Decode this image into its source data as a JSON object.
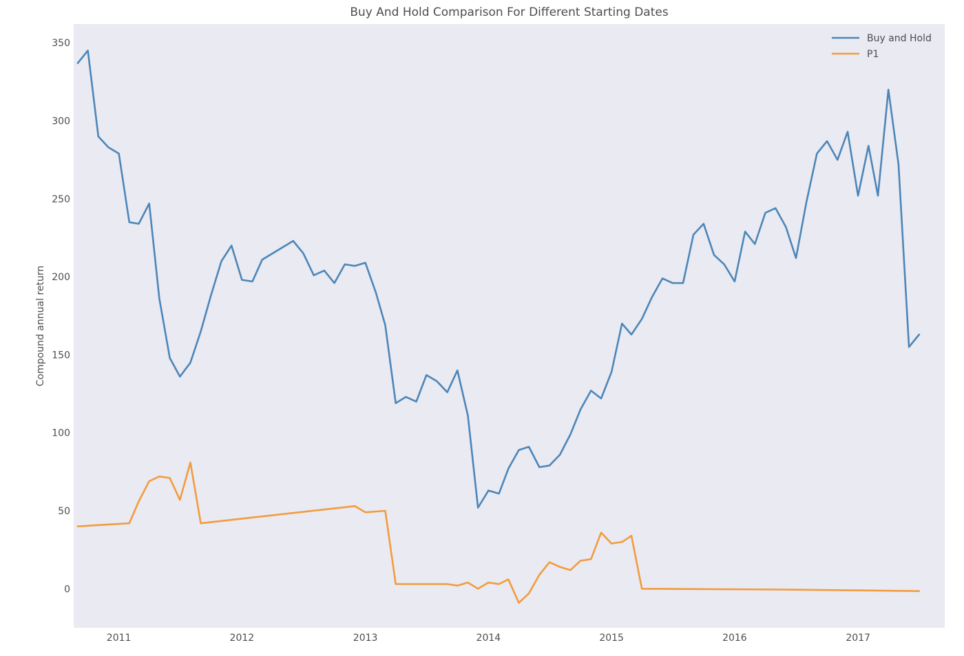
{
  "chart_data": {
    "type": "line",
    "title": "Buy And Hold Comparison For Different Starting Dates",
    "xlabel": "",
    "ylabel": "Compound annual return",
    "x_ticks": [
      "2011",
      "2012",
      "2013",
      "2014",
      "2015",
      "2016",
      "2017"
    ],
    "y_ticks": [
      0,
      50,
      100,
      150,
      200,
      250,
      300,
      350
    ],
    "xlim": [
      "2010-08-20",
      "2017-09-15"
    ],
    "ylim": [
      -25,
      362
    ],
    "grid": false,
    "legend_position": "top-right",
    "series": [
      {
        "name": "Buy and Hold",
        "color": "#4c86b8",
        "points": [
          [
            "2010-09-01",
            337
          ],
          [
            "2010-10-01",
            345
          ],
          [
            "2010-11-01",
            290
          ],
          [
            "2010-12-01",
            283
          ],
          [
            "2011-01-01",
            279
          ],
          [
            "2011-02-01",
            235
          ],
          [
            "2011-03-01",
            234
          ],
          [
            "2011-04-01",
            247
          ],
          [
            "2011-05-01",
            186
          ],
          [
            "2011-06-01",
            148
          ],
          [
            "2011-07-01",
            136
          ],
          [
            "2011-08-01",
            145
          ],
          [
            "2011-09-01",
            165
          ],
          [
            "2011-10-01",
            188
          ],
          [
            "2011-11-01",
            210
          ],
          [
            "2011-12-01",
            220
          ],
          [
            "2012-01-01",
            198
          ],
          [
            "2012-02-01",
            197
          ],
          [
            "2012-03-01",
            211
          ],
          [
            "2012-06-01",
            223
          ],
          [
            "2012-07-01",
            215
          ],
          [
            "2012-08-01",
            201
          ],
          [
            "2012-09-01",
            204
          ],
          [
            "2012-10-01",
            196
          ],
          [
            "2012-11-01",
            208
          ],
          [
            "2012-12-01",
            207
          ],
          [
            "2013-01-01",
            209
          ],
          [
            "2013-02-01",
            190
          ],
          [
            "2013-03-01",
            169
          ],
          [
            "2013-04-01",
            119
          ],
          [
            "2013-05-01",
            123
          ],
          [
            "2013-06-01",
            120
          ],
          [
            "2013-07-01",
            137
          ],
          [
            "2013-08-01",
            133
          ],
          [
            "2013-09-01",
            126
          ],
          [
            "2013-10-01",
            140
          ],
          [
            "2013-11-01",
            111
          ],
          [
            "2013-12-01",
            52
          ],
          [
            "2014-01-01",
            63
          ],
          [
            "2014-02-01",
            61
          ],
          [
            "2014-03-01",
            77
          ],
          [
            "2014-04-01",
            89
          ],
          [
            "2014-05-01",
            91
          ],
          [
            "2014-06-01",
            78
          ],
          [
            "2014-07-01",
            79
          ],
          [
            "2014-08-01",
            86
          ],
          [
            "2014-09-01",
            99
          ],
          [
            "2014-10-01",
            115
          ],
          [
            "2014-11-01",
            127
          ],
          [
            "2014-12-01",
            122
          ],
          [
            "2015-01-01",
            139
          ],
          [
            "2015-02-01",
            170
          ],
          [
            "2015-03-01",
            163
          ],
          [
            "2015-04-01",
            173
          ],
          [
            "2015-05-01",
            187
          ],
          [
            "2015-06-01",
            199
          ],
          [
            "2015-07-01",
            196
          ],
          [
            "2015-08-01",
            196
          ],
          [
            "2015-09-01",
            227
          ],
          [
            "2015-10-01",
            234
          ],
          [
            "2015-11-01",
            214
          ],
          [
            "2015-12-01",
            208
          ],
          [
            "2016-01-01",
            197
          ],
          [
            "2016-02-01",
            229
          ],
          [
            "2016-03-01",
            221
          ],
          [
            "2016-04-01",
            241
          ],
          [
            "2016-05-01",
            244
          ],
          [
            "2016-06-01",
            232
          ],
          [
            "2016-07-01",
            212
          ],
          [
            "2016-08-01",
            248
          ],
          [
            "2016-09-01",
            279
          ],
          [
            "2016-10-01",
            287
          ],
          [
            "2016-11-01",
            275
          ],
          [
            "2016-12-01",
            293
          ],
          [
            "2017-01-01",
            252
          ],
          [
            "2017-02-01",
            284
          ],
          [
            "2017-03-01",
            252
          ],
          [
            "2017-04-01",
            320
          ],
          [
            "2017-05-01",
            272
          ],
          [
            "2017-06-01",
            155
          ],
          [
            "2017-07-01",
            163
          ]
        ]
      },
      {
        "name": "P1",
        "color": "#f39b3d",
        "points": [
          [
            "2010-09-01",
            40
          ],
          [
            "2011-02-01",
            42
          ],
          [
            "2011-03-01",
            56
          ],
          [
            "2011-04-01",
            69
          ],
          [
            "2011-05-01",
            72
          ],
          [
            "2011-06-01",
            71
          ],
          [
            "2011-07-01",
            57
          ],
          [
            "2011-08-01",
            81
          ],
          [
            "2011-09-01",
            42
          ],
          [
            "2012-12-01",
            53
          ],
          [
            "2013-01-01",
            49
          ],
          [
            "2013-03-01",
            50
          ],
          [
            "2013-04-01",
            3
          ],
          [
            "2013-09-01",
            3
          ],
          [
            "2013-10-01",
            2
          ],
          [
            "2013-11-01",
            4
          ],
          [
            "2013-12-01",
            0
          ],
          [
            "2014-01-01",
            4
          ],
          [
            "2014-02-01",
            3
          ],
          [
            "2014-03-01",
            6
          ],
          [
            "2014-04-01",
            -9
          ],
          [
            "2014-05-01",
            -3
          ],
          [
            "2014-06-01",
            9
          ],
          [
            "2014-07-01",
            17
          ],
          [
            "2014-08-01",
            14
          ],
          [
            "2014-09-01",
            12
          ],
          [
            "2014-10-01",
            18
          ],
          [
            "2014-11-01",
            19
          ],
          [
            "2014-12-01",
            36
          ],
          [
            "2015-01-01",
            29
          ],
          [
            "2015-02-01",
            30
          ],
          [
            "2015-03-01",
            34
          ],
          [
            "2015-04-01",
            0
          ],
          [
            "2016-06-01",
            -0.5
          ],
          [
            "2017-07-01",
            -1.5
          ]
        ]
      }
    ]
  }
}
